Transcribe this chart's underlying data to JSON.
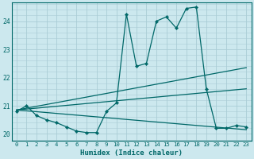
{
  "xlabel": "Humidex (Indice chaleur)",
  "ylabel": "",
  "bg_color": "#cce8ee",
  "grid_color": "#aacdd6",
  "line_color": "#006868",
  "xlim": [
    -0.5,
    23.5
  ],
  "ylim": [
    19.75,
    24.65
  ],
  "yticks": [
    20,
    21,
    22,
    23,
    24
  ],
  "xticks": [
    0,
    1,
    2,
    3,
    4,
    5,
    6,
    7,
    8,
    9,
    10,
    11,
    12,
    13,
    14,
    15,
    16,
    17,
    18,
    19,
    20,
    21,
    22,
    23
  ],
  "series1_x": [
    0,
    1,
    2,
    3,
    4,
    5,
    6,
    7,
    8,
    9,
    10,
    11,
    12,
    13,
    14,
    15,
    16,
    17,
    18,
    19,
    20,
    21,
    22,
    23
  ],
  "series1_y": [
    20.8,
    21.0,
    20.65,
    20.5,
    20.4,
    20.25,
    20.1,
    20.05,
    20.05,
    20.8,
    21.1,
    24.25,
    22.4,
    22.5,
    24.0,
    24.15,
    23.75,
    24.45,
    24.5,
    21.6,
    20.2,
    20.2,
    20.3,
    20.25
  ],
  "series2_x": [
    0,
    23
  ],
  "series2_y": [
    20.85,
    22.35
  ],
  "series3_x": [
    0,
    23
  ],
  "series3_y": [
    20.85,
    21.6
  ],
  "series4_x": [
    0,
    23
  ],
  "series4_y": [
    20.85,
    20.15
  ]
}
